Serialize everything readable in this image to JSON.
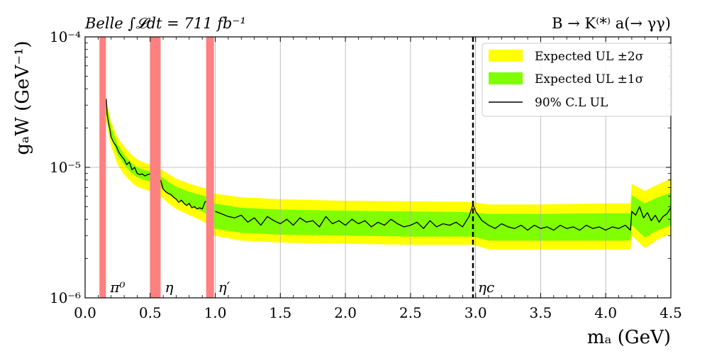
{
  "chart_data": {
    "type": "line",
    "title_left": "Belle ∫𝓛dt = 711 fb⁻¹",
    "title_right": "B → K⁽*⁾ a(→ γγ)",
    "xlabel": "mₐ (GeV)",
    "ylabel": "gₐW (GeV⁻¹)",
    "xlim": [
      0.0,
      4.5
    ],
    "ylim": [
      1e-06,
      0.0001
    ],
    "yscale": "log",
    "grid": true,
    "legend_position": "upper right",
    "x_ticks": [
      0.0,
      0.5,
      1.0,
      1.5,
      2.0,
      2.5,
      3.0,
      3.5,
      4.0,
      4.5
    ],
    "x_tick_labels": [
      "0.0",
      "0.5",
      "1.0",
      "1.5",
      "2.0",
      "2.5",
      "3.0",
      "3.5",
      "4.0",
      "4.5"
    ],
    "y_ticks": [
      1e-06,
      1e-05,
      0.0001
    ],
    "y_tick_labels": [
      "10⁻⁶",
      "10⁻⁵",
      "10⁻⁴"
    ],
    "colors": {
      "band_2sigma": "#ffff00",
      "band_1sigma": "#7fff00",
      "observed_line": "#000000",
      "veto_region": "#ff8080",
      "eta_c_line": "#000000"
    },
    "legend": [
      {
        "label": "Expected UL ±2σ",
        "kind": "band_2sigma"
      },
      {
        "label": "Expected UL ±1σ",
        "kind": "band_1sigma"
      },
      {
        "label": "90% C.L UL",
        "kind": "observed_line"
      }
    ],
    "veto_regions": [
      {
        "label": "π⁰",
        "x": [
          0.11,
          0.16
        ]
      },
      {
        "label": "η",
        "x": [
          0.5,
          0.58
        ]
      },
      {
        "label": "η′",
        "x": [
          0.93,
          0.99
        ]
      }
    ],
    "vertical_markers": [
      {
        "label": "ηc",
        "x": 2.98
      }
    ],
    "series": [
      {
        "name": "Expected UL ±2σ",
        "segments": [
          {
            "x": [
              0.16,
              0.2,
              0.25,
              0.3,
              0.35,
              0.4,
              0.45,
              0.5
            ],
            "lower": [
              2.3e-05,
              1.45e-05,
              1.05e-05,
              8.8e-06,
              7.8e-06,
              7.1e-06,
              6.8e-06,
              6.6e-06
            ],
            "upper": [
              3.3e-05,
              2.25e-05,
              1.7e-05,
              1.45e-05,
              1.27e-05,
              1.15e-05,
              1.09e-05,
              1.05e-05
            ]
          },
          {
            "x": [
              0.58,
              0.65,
              0.7,
              0.8,
              0.9,
              0.93
            ],
            "lower": [
              6e-06,
              5.2e-06,
              4.8e-06,
              4.3e-06,
              3.9e-06,
              3.7e-06
            ],
            "upper": [
              9.7e-06,
              8.8e-06,
              8.2e-06,
              7.5e-06,
              7e-06,
              6.9e-06
            ]
          },
          {
            "x": [
              0.99,
              1.2,
              1.5,
              2.0,
              2.5,
              2.9,
              2.98,
              3.1,
              3.5,
              4.0,
              4.19,
              4.2,
              4.3,
              4.4,
              4.5
            ],
            "lower": [
              3e-06,
              2.75e-06,
              2.65e-06,
              2.6e-06,
              2.55e-06,
              2.55e-06,
              2.55e-06,
              2.35e-06,
              2.35e-06,
              2.35e-06,
              2.35e-06,
              3e-06,
              2.4e-06,
              2.8e-06,
              3.1e-06
            ],
            "upper": [
              6.3e-06,
              5.9e-06,
              5.7e-06,
              5.55e-06,
              5.5e-06,
              5.45e-06,
              5.4e-06,
              5.2e-06,
              5.2e-06,
              5.3e-06,
              5.3e-06,
              7.5e-06,
              6.6e-06,
              7.4e-06,
              8.2e-06
            ]
          }
        ]
      },
      {
        "name": "Expected UL ±1σ",
        "segments": [
          {
            "x": [
              0.16,
              0.2,
              0.25,
              0.3,
              0.35,
              0.4,
              0.45,
              0.5
            ],
            "lower": [
              2.6e-05,
              1.7e-05,
              1.25e-05,
              1.05e-05,
              9.2e-06,
              8.4e-06,
              8e-06,
              7.8e-06
            ],
            "upper": [
              3.2e-05,
              2.05e-05,
              1.5e-05,
              1.25e-05,
              1.1e-05,
              1e-05,
              9.6e-06,
              9.3e-06
            ]
          },
          {
            "x": [
              0.58,
              0.65,
              0.7,
              0.8,
              0.9,
              0.93
            ],
            "lower": [
              7e-06,
              6.1e-06,
              5.7e-06,
              5.1e-06,
              4.6e-06,
              4.4e-06
            ],
            "upper": [
              8.6e-06,
              7.6e-06,
              7.1e-06,
              6.5e-06,
              6.1e-06,
              6e-06
            ]
          },
          {
            "x": [
              0.99,
              1.2,
              1.5,
              2.0,
              2.5,
              2.9,
              2.98,
              3.1,
              3.5,
              4.0,
              4.19,
              4.2,
              4.3,
              4.4,
              4.5
            ],
            "lower": [
              3.4e-06,
              3.15e-06,
              3.05e-06,
              3e-06,
              2.95e-06,
              2.95e-06,
              2.95e-06,
              2.75e-06,
              2.75e-06,
              2.75e-06,
              2.75e-06,
              3.6e-06,
              2.9e-06,
              3.3e-06,
              3.6e-06
            ],
            "upper": [
              5.3e-06,
              4.9e-06,
              4.75e-06,
              4.65e-06,
              4.6e-06,
              4.55e-06,
              4.5e-06,
              4.4e-06,
              4.4e-06,
              4.45e-06,
              4.45e-06,
              6.1e-06,
              5.3e-06,
              5.9e-06,
              6.4e-06
            ]
          }
        ]
      },
      {
        "name": "90% C.L UL",
        "segments": [
          {
            "x": [
              0.163,
              0.17,
              0.18,
              0.19,
              0.2,
              0.22,
              0.24,
              0.26,
              0.28,
              0.3,
              0.32,
              0.34,
              0.36,
              0.38,
              0.4,
              0.42,
              0.44,
              0.46,
              0.48,
              0.5
            ],
            "y": [
              3.35e-05,
              2.5e-05,
              2.2e-05,
              1.95e-05,
              1.7e-05,
              1.55e-05,
              1.45e-05,
              1.3e-05,
              1.22e-05,
              1.15e-05,
              1.05e-05,
              1.1e-05,
              9.6e-06,
              1e-05,
              9e-06,
              8.8e-06,
              8.9e-06,
              8.6e-06,
              8.8e-06,
              8.9e-06
            ]
          },
          {
            "x": [
              0.58,
              0.6,
              0.62,
              0.64,
              0.66,
              0.68,
              0.7,
              0.72,
              0.74,
              0.76,
              0.78,
              0.8,
              0.82,
              0.84,
              0.86,
              0.88,
              0.9,
              0.92,
              0.93
            ],
            "y": [
              8e-06,
              6.8e-06,
              6.5e-06,
              6.3e-06,
              6.2e-06,
              5.9e-06,
              5.7e-06,
              5.4e-06,
              5.6e-06,
              5.3e-06,
              5.1e-06,
              5.3e-06,
              4.9e-06,
              5e-06,
              4.8e-06,
              4.9e-06,
              4.8e-06,
              5.4e-06,
              5.5e-06
            ]
          },
          {
            "x": [
              1.0,
              1.05,
              1.1,
              1.15,
              1.2,
              1.25,
              1.3,
              1.35,
              1.4,
              1.45,
              1.5,
              1.55,
              1.6,
              1.65,
              1.7,
              1.75,
              1.8,
              1.85,
              1.9,
              1.95,
              2.0,
              2.05,
              2.1,
              2.15,
              2.2,
              2.25,
              2.3,
              2.35,
              2.4,
              2.45,
              2.5,
              2.55,
              2.6,
              2.65,
              2.7,
              2.75,
              2.8,
              2.85,
              2.9,
              2.95,
              2.98,
              3.0,
              3.05,
              3.1,
              3.15,
              3.2,
              3.25,
              3.3,
              3.35,
              3.4,
              3.45,
              3.5,
              3.55,
              3.6,
              3.65,
              3.7,
              3.75,
              3.8,
              3.85,
              3.9,
              3.95,
              4.0,
              4.05,
              4.1,
              4.15,
              4.19,
              4.2,
              4.23,
              4.26,
              4.29,
              4.32,
              4.35,
              4.38,
              4.41,
              4.44,
              4.47,
              4.5
            ],
            "y": [
              4.6e-06,
              4.4e-06,
              4.2e-06,
              4.1e-06,
              4.3e-06,
              3.8e-06,
              4.1e-06,
              3.6e-06,
              4.2e-06,
              3.9e-06,
              3.7e-06,
              4e-06,
              3.6e-06,
              4.1e-06,
              3.8e-06,
              3.9e-06,
              3.5e-06,
              4.2e-06,
              3.7e-06,
              3.9e-06,
              3.6e-06,
              4e-06,
              3.7e-06,
              3.9e-06,
              3.5e-06,
              3.8e-06,
              3.6e-06,
              4e-06,
              3.7e-06,
              3.5e-06,
              3.6e-06,
              3.8e-06,
              3.4e-06,
              3.9e-06,
              3.5e-06,
              3.7e-06,
              3.6e-06,
              3.8e-06,
              3.5e-06,
              4.2e-06,
              5.2e-06,
              4.6e-06,
              3.9e-06,
              3.6e-06,
              3.4e-06,
              3.7e-06,
              3.5e-06,
              3.4e-06,
              3.6e-06,
              3.3e-06,
              3.6e-06,
              3.4e-06,
              3.5e-06,
              3.3e-06,
              3.6e-06,
              3.4e-06,
              3.5e-06,
              3.3e-06,
              3.6e-06,
              3.4e-06,
              3.5e-06,
              3.3e-06,
              3.5e-06,
              3.4e-06,
              3.6e-06,
              3.3e-06,
              4.6e-06,
              4.3e-06,
              5e-06,
              4.1e-06,
              4.5e-06,
              3.9e-06,
              4.3e-06,
              3.8e-06,
              4.2e-06,
              4.4e-06,
              4.9e-06
            ]
          }
        ]
      }
    ]
  }
}
